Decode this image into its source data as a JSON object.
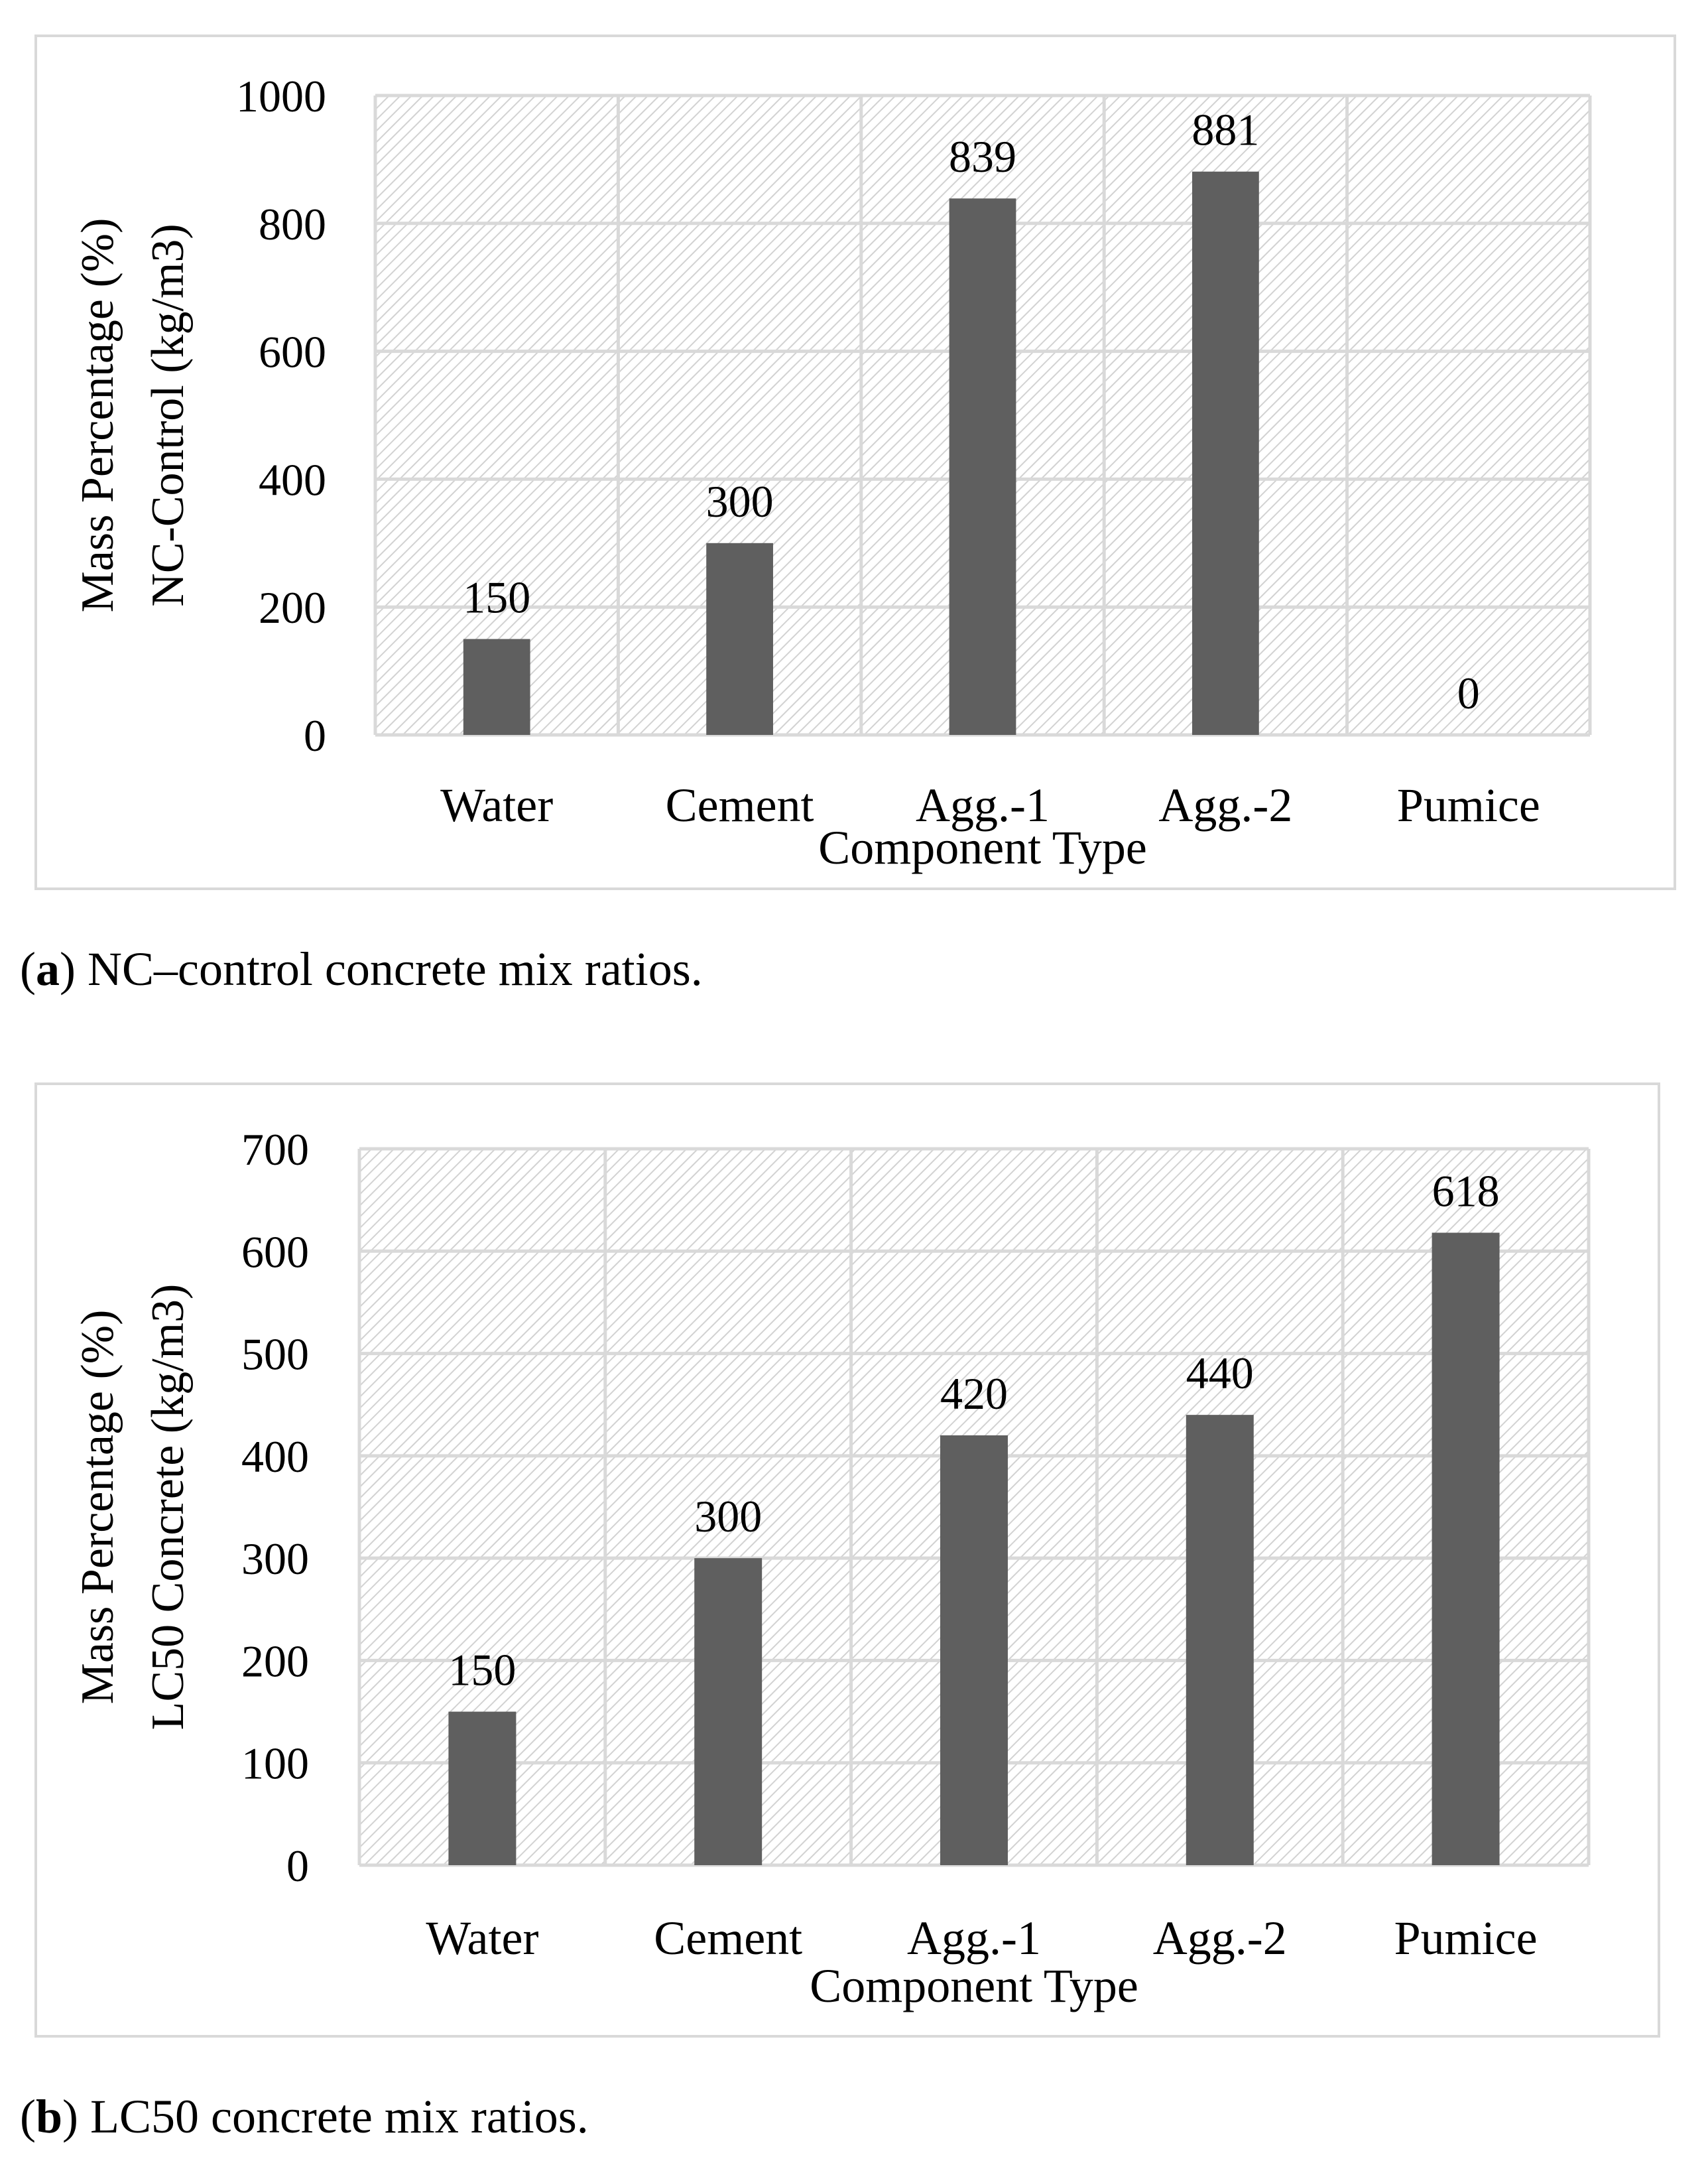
{
  "chart_data": [
    {
      "type": "bar",
      "panel": "a",
      "title": "",
      "categories": [
        "Water",
        "Cement",
        "Agg.-1",
        "Agg.-2",
        "Pumice"
      ],
      "values": [
        150,
        300,
        839,
        881,
        0
      ],
      "data_labels": [
        "150",
        "300",
        "839",
        "881",
        "0"
      ],
      "yticks": [
        "0",
        "200",
        "400",
        "600",
        "800",
        "1000"
      ],
      "ytick_values": [
        0,
        200,
        400,
        600,
        800,
        1000
      ],
      "ylim": [
        0,
        1000
      ],
      "xlabel": "Component Type",
      "ylabel_line1": "Mass Percentage (%)",
      "ylabel_line2": "NC-Control (kg/m3)",
      "grid": true,
      "bar_color": "#5f5f5f"
    },
    {
      "type": "bar",
      "panel": "b",
      "title": "",
      "categories": [
        "Water",
        "Cement",
        "Agg.-1",
        "Agg.-2",
        "Pumice"
      ],
      "values": [
        150,
        300,
        420,
        440,
        618
      ],
      "data_labels": [
        "150",
        "300",
        "420",
        "440",
        "618"
      ],
      "yticks": [
        "0",
        "100",
        "200",
        "300",
        "400",
        "500",
        "600",
        "700"
      ],
      "ytick_values": [
        0,
        100,
        200,
        300,
        400,
        500,
        600,
        700
      ],
      "ylim": [
        0,
        700
      ],
      "xlabel": "Component Type",
      "ylabel_line1": "Mass Percentage (%)",
      "ylabel_line2": "LC50 Concrete (kg/m3)",
      "grid": true,
      "bar_color": "#5f5f5f"
    }
  ],
  "captions": {
    "a": {
      "letter": "a",
      "text": " NC–control concrete mix ratios."
    },
    "b": {
      "letter": "b",
      "text": " LC50 concrete mix ratios."
    }
  },
  "colors": {
    "grid": "#d9d9d9",
    "hatch": "#cfcfcf",
    "frame": "#d9d9d9"
  }
}
